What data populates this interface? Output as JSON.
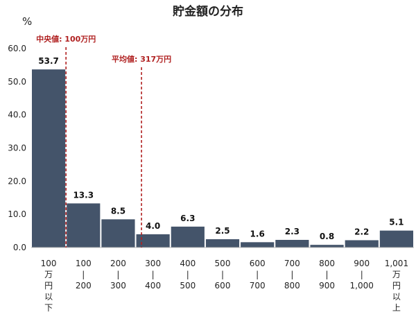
{
  "chart_data": {
    "type": "bar",
    "title": "貯金額の分布",
    "ylabel": "%",
    "ylim": [
      0,
      60
    ],
    "yticks": [
      "0.0",
      "10.0",
      "20.0",
      "30.0",
      "40.0",
      "50.0",
      "60.0"
    ],
    "categories": [
      [
        "100",
        "万",
        "円",
        "以",
        "下"
      ],
      [
        "100",
        "|",
        "200"
      ],
      [
        "200",
        "|",
        "300"
      ],
      [
        "300",
        "|",
        "400"
      ],
      [
        "400",
        "|",
        "500"
      ],
      [
        "500",
        "|",
        "600"
      ],
      [
        "600",
        "|",
        "700"
      ],
      [
        "700",
        "|",
        "800"
      ],
      [
        "800",
        "|",
        "900"
      ],
      [
        "900",
        "|",
        "1,000"
      ],
      [
        "1,001",
        "万",
        "円",
        "以",
        "上"
      ]
    ],
    "values": [
      53.7,
      13.3,
      8.5,
      4.0,
      6.3,
      2.5,
      1.6,
      2.3,
      0.8,
      2.2,
      5.1
    ],
    "value_labels": [
      "53.7",
      "13.3",
      "8.5",
      "4.0",
      "6.3",
      "2.5",
      "1.6",
      "2.3",
      "0.8",
      "2.2",
      "5.1"
    ],
    "annotations": [
      {
        "label": "中央値: 100万円",
        "x_value": 100
      },
      {
        "label": "平均値: 317万円",
        "x_value": 317
      }
    ],
    "colors": {
      "bar": "#44546a",
      "reference": "#b02020"
    }
  }
}
